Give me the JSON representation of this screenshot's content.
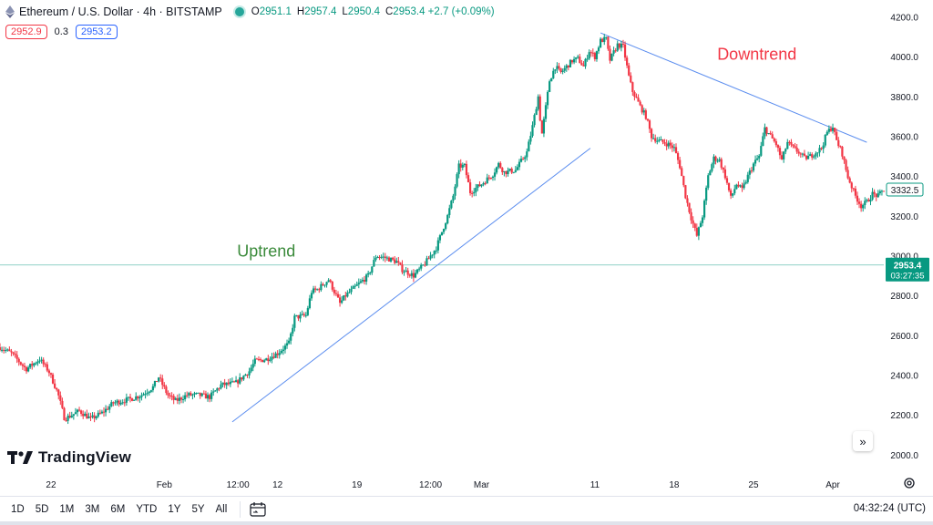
{
  "legend": {
    "symbol_text": "Ethereum / U.S. Dollar · 4h · BITSTAMP",
    "ohlc": [
      {
        "k": "O",
        "v": "2951.1"
      },
      {
        "k": "H",
        "v": "2957.4"
      },
      {
        "k": "L",
        "v": "2950.4"
      },
      {
        "k": "C",
        "v": "2953.4 +2.7 (+0.09%)"
      }
    ],
    "sell_price": "2952.9",
    "spread": "0.3",
    "buy_price": "2953.2"
  },
  "colors": {
    "up": "#089981",
    "down": "#f23645",
    "line": "#5b8def",
    "uptrend": "#3a8a3a",
    "downtrend": "#f23645"
  },
  "chart_data": {
    "type": "candlestick",
    "timeframe": "4h",
    "x_ticks": [
      {
        "label": "22",
        "day": 22
      },
      {
        "label": "Feb",
        "day": 32
      },
      {
        "label": "12:00",
        "day": 38.5
      },
      {
        "label": "12",
        "day": 42
      },
      {
        "label": "19",
        "day": 49
      },
      {
        "label": "12:00",
        "day": 55.5
      },
      {
        "label": "Mar",
        "day": 60
      },
      {
        "label": "11",
        "day": 70
      },
      {
        "label": "18",
        "day": 77
      },
      {
        "label": "25",
        "day": 84
      },
      {
        "label": "Apr",
        "day": 91
      }
    ],
    "x_range": [
      17.5,
      95.5
    ],
    "y_ticks": [
      "4200.0",
      "4000.0",
      "3800.0",
      "3600.0",
      "3400.0",
      "3200.0",
      "3000.0",
      "2800.0",
      "2600.0",
      "2400.0",
      "2200.0",
      "2000.0"
    ],
    "y_range": [
      1940,
      4285
    ],
    "current_price": 2953.4,
    "current_price_label": "2953.4",
    "countdown": "03:27:35",
    "last_bar_price": 3332.5,
    "last_bar_label": "3332.5",
    "path": [
      [
        17.5,
        2540
      ],
      [
        18.5,
        2510
      ],
      [
        19.8,
        2430
      ],
      [
        21,
        2480
      ],
      [
        21.8,
        2420
      ],
      [
        22.6,
        2310
      ],
      [
        23.2,
        2180
      ],
      [
        24.5,
        2220
      ],
      [
        25.5,
        2180
      ],
      [
        26.5,
        2210
      ],
      [
        27.5,
        2260
      ],
      [
        29,
        2280
      ],
      [
        30,
        2300
      ],
      [
        31,
        2340
      ],
      [
        31.5,
        2390
      ],
      [
        32.3,
        2300
      ],
      [
        33,
        2270
      ],
      [
        34,
        2300
      ],
      [
        35,
        2300
      ],
      [
        36,
        2290
      ],
      [
        37,
        2350
      ],
      [
        38.3,
        2360
      ],
      [
        39.5,
        2420
      ],
      [
        40,
        2470
      ],
      [
        41,
        2480
      ],
      [
        42,
        2510
      ],
      [
        43,
        2560
      ],
      [
        43.5,
        2690
      ],
      [
        44.5,
        2700
      ],
      [
        45,
        2820
      ],
      [
        45.5,
        2830
      ],
      [
        46.5,
        2880
      ],
      [
        47,
        2820
      ],
      [
        47.5,
        2760
      ],
      [
        48,
        2800
      ],
      [
        49,
        2850
      ],
      [
        50,
        2900
      ],
      [
        50.7,
        3000
      ],
      [
        51.5,
        2990
      ],
      [
        52.5,
        2970
      ],
      [
        53,
        2930
      ],
      [
        54,
        2900
      ],
      [
        55,
        2960
      ],
      [
        56,
        3040
      ],
      [
        57,
        3200
      ],
      [
        57.5,
        3300
      ],
      [
        58,
        3450
      ],
      [
        58.5,
        3450
      ],
      [
        59,
        3320
      ],
      [
        60,
        3360
      ],
      [
        61,
        3410
      ],
      [
        61.5,
        3460
      ],
      [
        62,
        3420
      ],
      [
        63,
        3430
      ],
      [
        64,
        3520
      ],
      [
        64.5,
        3650
      ],
      [
        65,
        3800
      ],
      [
        65.3,
        3600
      ],
      [
        66,
        3880
      ],
      [
        66.5,
        3950
      ],
      [
        67,
        3920
      ],
      [
        68,
        3980
      ],
      [
        68.5,
        3990
      ],
      [
        69,
        3950
      ],
      [
        69.5,
        4030
      ],
      [
        70,
        4000
      ],
      [
        70.5,
        4080
      ],
      [
        71,
        4090
      ],
      [
        71.3,
        3980
      ],
      [
        72,
        4060
      ],
      [
        72.5,
        4050
      ],
      [
        73,
        3900
      ],
      [
        73.3,
        3830
      ],
      [
        74,
        3750
      ],
      [
        74.5,
        3700
      ],
      [
        75,
        3600
      ],
      [
        75.5,
        3580
      ],
      [
        76.5,
        3560
      ],
      [
        77,
        3540
      ],
      [
        77.5,
        3450
      ],
      [
        78,
        3300
      ],
      [
        78.5,
        3190
      ],
      [
        79,
        3100
      ],
      [
        79.5,
        3200
      ],
      [
        80,
        3400
      ],
      [
        80.5,
        3490
      ],
      [
        81,
        3480
      ],
      [
        81.5,
        3400
      ],
      [
        82,
        3290
      ],
      [
        82.5,
        3360
      ],
      [
        83,
        3330
      ],
      [
        83.5,
        3400
      ],
      [
        84,
        3460
      ],
      [
        84.5,
        3500
      ],
      [
        85,
        3640
      ],
      [
        85.5,
        3600
      ],
      [
        86,
        3560
      ],
      [
        86.5,
        3480
      ],
      [
        87,
        3570
      ],
      [
        87.5,
        3540
      ],
      [
        88,
        3520
      ],
      [
        88.5,
        3490
      ],
      [
        89,
        3500
      ],
      [
        89.5,
        3520
      ],
      [
        90,
        3540
      ],
      [
        90.5,
        3620
      ],
      [
        91,
        3650
      ],
      [
        91.3,
        3580
      ],
      [
        91.8,
        3520
      ],
      [
        92.3,
        3400
      ],
      [
        93,
        3300
      ],
      [
        93.5,
        3250
      ],
      [
        94,
        3270
      ],
      [
        94.5,
        3310
      ],
      [
        95,
        3300
      ],
      [
        95.5,
        3332.5
      ]
    ],
    "lines": [
      {
        "name": "uptrend-line",
        "from": [
          38,
          2165
        ],
        "to": [
          69.6,
          3540
        ]
      },
      {
        "name": "downtrend-line",
        "from": [
          70.5,
          4120
        ],
        "to": [
          94,
          3570
        ]
      }
    ],
    "annotations": [
      {
        "name": "uptrend-label",
        "text": "Uptrend",
        "day": 41,
        "price": 2995
      },
      {
        "name": "downtrend-label",
        "text": "Downtrend",
        "day": 84.3,
        "price": 3985
      }
    ]
  },
  "watermark": "TradingView",
  "toolbar": {
    "timeframes": [
      "1D",
      "5D",
      "1M",
      "3M",
      "6M",
      "YTD",
      "1Y",
      "5Y",
      "All"
    ],
    "clock": "04:32:24 (UTC)"
  }
}
